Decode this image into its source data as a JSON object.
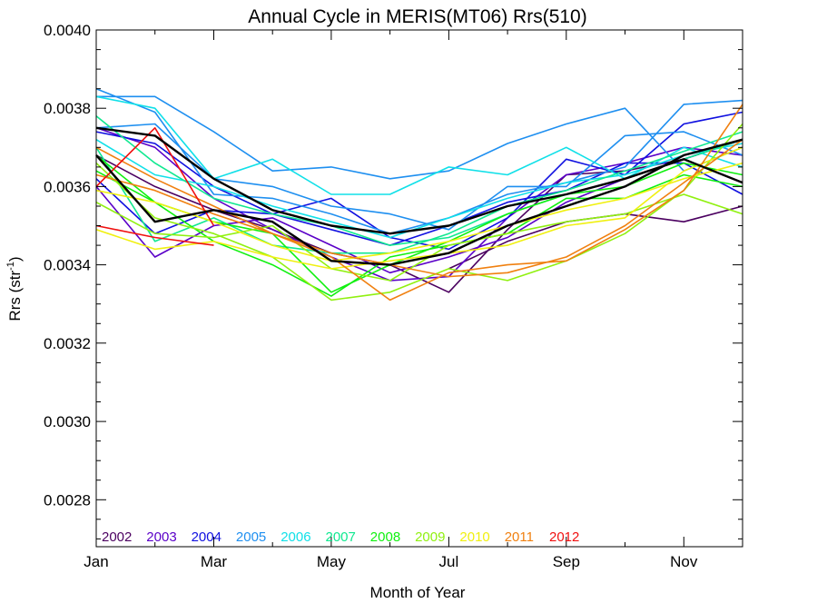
{
  "chart_data": {
    "type": "line",
    "title": "Annual Cycle in MERIS(MT06) Rrs(510)",
    "xlabel": "Month of Year",
    "ylabel": "Rrs (str",
    "ylabel_sup": "-1",
    "ylabel_suffix": ")",
    "xlim": [
      1,
      12
    ],
    "ylim": [
      0.00268,
      0.004
    ],
    "x_ticks": [
      {
        "value": 1,
        "label": "Jan"
      },
      {
        "value": 3,
        "label": "Mar"
      },
      {
        "value": 5,
        "label": "May"
      },
      {
        "value": 7,
        "label": "Jul"
      },
      {
        "value": 9,
        "label": "Sep"
      },
      {
        "value": 11,
        "label": "Nov"
      }
    ],
    "y_ticks": [
      {
        "value": 0.0028,
        "label": "0.0028"
      },
      {
        "value": 0.003,
        "label": "0.0030"
      },
      {
        "value": 0.0032,
        "label": "0.0032"
      },
      {
        "value": 0.0034,
        "label": "0.0034"
      },
      {
        "value": 0.0036,
        "label": "0.0036"
      },
      {
        "value": 0.0038,
        "label": "0.0038"
      },
      {
        "value": 0.004,
        "label": "0.0040"
      }
    ],
    "legend_placement": "bottom-left",
    "legend": [
      {
        "label": "2002",
        "color": "#4b0060"
      },
      {
        "label": "2003",
        "color": "#5a00c8"
      },
      {
        "label": "2004",
        "color": "#1010e0"
      },
      {
        "label": "2005",
        "color": "#1e8ff0"
      },
      {
        "label": "2006",
        "color": "#10e0e8"
      },
      {
        "label": "2007",
        "color": "#10e890"
      },
      {
        "label": "2008",
        "color": "#10f010"
      },
      {
        "label": "2009",
        "color": "#90f010"
      },
      {
        "label": "2010",
        "color": "#f0f010"
      },
      {
        "label": "2011",
        "color": "#f08010"
      },
      {
        "label": "2012",
        "color": "#f01010"
      }
    ],
    "series": [
      {
        "year": "2002",
        "color": "#4b0060",
        "x": [
          7,
          8,
          9,
          10,
          11,
          12
        ],
        "values": [
          0.00339,
          0.00346,
          0.00351,
          0.00353,
          0.00351,
          0.00355
        ]
      },
      {
        "year": "2002",
        "color": "#4b0060",
        "x": [
          1,
          2,
          3,
          4,
          5,
          6,
          7,
          8,
          9,
          10,
          11,
          12
        ],
        "values": [
          0.00368,
          0.0036,
          0.00354,
          0.00349,
          0.00343,
          0.0034,
          0.00333,
          0.00349,
          0.00363,
          0.00364,
          0.00367,
          0.00372
        ]
      },
      {
        "year": "2003",
        "color": "#5a00c8",
        "x": [
          1,
          2,
          3,
          4,
          5,
          6,
          7,
          8,
          9,
          10,
          11,
          12
        ],
        "values": [
          0.0036,
          0.00342,
          0.0035,
          0.00352,
          0.00345,
          0.00338,
          0.00342,
          0.00347,
          0.00356,
          0.00362,
          0.00367,
          0.00372
        ]
      },
      {
        "year": "2003",
        "color": "#5a00c8",
        "x": [
          1,
          2,
          3,
          4,
          5,
          6,
          7,
          8,
          9,
          10,
          11,
          12
        ],
        "values": [
          0.00375,
          0.0037,
          0.00357,
          0.00349,
          0.00342,
          0.00336,
          0.00337,
          0.00352,
          0.00363,
          0.00366,
          0.0037,
          0.00368
        ]
      },
      {
        "year": "2004",
        "color": "#1010e0",
        "x": [
          1,
          2,
          3,
          4,
          5,
          6,
          7,
          8,
          9,
          10,
          11,
          12
        ],
        "values": [
          0.00362,
          0.00348,
          0.00354,
          0.00353,
          0.00357,
          0.00347,
          0.00344,
          0.00352,
          0.00367,
          0.00363,
          0.00376,
          0.00379
        ]
      },
      {
        "year": "2004",
        "color": "#1010e0",
        "x": [
          1,
          2,
          3,
          4,
          5,
          6,
          7,
          8,
          9,
          10,
          11,
          12
        ],
        "values": [
          0.00374,
          0.00371,
          0.0036,
          0.00353,
          0.00349,
          0.00345,
          0.0035,
          0.00356,
          0.00359,
          0.00366,
          0.00366,
          0.00358
        ]
      },
      {
        "year": "2005",
        "color": "#1e8ff0",
        "x": [
          1,
          2,
          3,
          4,
          5,
          6,
          7,
          8,
          9,
          10,
          11,
          12
        ],
        "values": [
          0.00383,
          0.00383,
          0.00374,
          0.00364,
          0.00365,
          0.00362,
          0.00364,
          0.00371,
          0.00376,
          0.0038,
          0.00364,
          0.0037
        ]
      },
      {
        "year": "2005",
        "color": "#1e8ff0",
        "x": [
          1,
          2,
          3,
          4,
          5,
          6,
          7,
          8,
          9,
          10,
          11,
          12
        ],
        "values": [
          0.00375,
          0.00376,
          0.00362,
          0.0036,
          0.00355,
          0.00353,
          0.00349,
          0.0036,
          0.0036,
          0.00373,
          0.00374,
          0.00368
        ]
      },
      {
        "year": "2005",
        "color": "#1e8ff0",
        "x": [
          1,
          2,
          3,
          4,
          5,
          6,
          7,
          8,
          9,
          10,
          11,
          12
        ],
        "values": [
          0.00385,
          0.00379,
          0.00358,
          0.00357,
          0.00353,
          0.00348,
          0.00352,
          0.00358,
          0.00361,
          0.00365,
          0.00381,
          0.00382
        ]
      },
      {
        "year": "2006",
        "color": "#10e0e8",
        "x": [
          1,
          2,
          3,
          4,
          5,
          6,
          7,
          8,
          9,
          10,
          11,
          12
        ],
        "values": [
          0.00383,
          0.0038,
          0.00362,
          0.00367,
          0.00358,
          0.00358,
          0.00365,
          0.00363,
          0.0037,
          0.00362,
          0.0037,
          0.00365
        ]
      },
      {
        "year": "2006",
        "color": "#10e0e8",
        "x": [
          1,
          2,
          3,
          4,
          5,
          6,
          7,
          8,
          9,
          10,
          11,
          12
        ],
        "values": [
          0.00372,
          0.00363,
          0.0036,
          0.00355,
          0.00351,
          0.00347,
          0.00352,
          0.00357,
          0.00361,
          0.00363,
          0.00368,
          0.00371
        ]
      },
      {
        "year": "2007",
        "color": "#10e890",
        "x": [
          1,
          2,
          3,
          4,
          5,
          6,
          7,
          8,
          9,
          10,
          11,
          12
        ],
        "values": [
          0.00378,
          0.00366,
          0.00357,
          0.00353,
          0.0035,
          0.00345,
          0.00347,
          0.00353,
          0.00358,
          0.00362,
          0.00367,
          0.00372
        ]
      },
      {
        "year": "2007",
        "color": "#10e890",
        "x": [
          1,
          2,
          3,
          4,
          5,
          6,
          7,
          8,
          9,
          10,
          11,
          12
        ],
        "values": [
          0.0037,
          0.00346,
          0.00352,
          0.00345,
          0.00343,
          0.00343,
          0.00348,
          0.00355,
          0.00359,
          0.00364,
          0.00369,
          0.00374
        ]
      },
      {
        "year": "2008",
        "color": "#10f010",
        "x": [
          1,
          2,
          3,
          4,
          5,
          6,
          7,
          8,
          9,
          10,
          11,
          12
        ],
        "values": [
          0.00368,
          0.00356,
          0.00351,
          0.00348,
          0.00333,
          0.0034,
          0.00346,
          0.00353,
          0.00358,
          0.0036,
          0.00366,
          0.00363
        ]
      },
      {
        "year": "2008",
        "color": "#10f010",
        "x": [
          1,
          2,
          3,
          4,
          5,
          6,
          7,
          8,
          9,
          10,
          11,
          12
        ],
        "values": [
          0.00364,
          0.00356,
          0.00346,
          0.0034,
          0.00332,
          0.00342,
          0.00345,
          0.00348,
          0.00357,
          0.00357,
          0.00363,
          0.0036
        ]
      },
      {
        "year": "2009",
        "color": "#90f010",
        "x": [
          1,
          2,
          3,
          4,
          5,
          6,
          7,
          8,
          9,
          10,
          11,
          12
        ],
        "values": [
          0.00366,
          0.00352,
          0.00348,
          0.00342,
          0.00331,
          0.00333,
          0.00339,
          0.00336,
          0.00341,
          0.00348,
          0.00359,
          0.00376
        ]
      },
      {
        "year": "2009",
        "color": "#90f010",
        "x": [
          1,
          2,
          3,
          4,
          5,
          6,
          7,
          8,
          9,
          10,
          11,
          12
        ],
        "values": [
          0.00356,
          0.00348,
          0.00347,
          0.0035,
          0.00339,
          0.00336,
          0.00345,
          0.00348,
          0.00351,
          0.00353,
          0.00358,
          0.00353
        ]
      },
      {
        "year": "2010",
        "color": "#f0f010",
        "x": [
          1,
          2,
          3,
          4,
          5,
          6,
          7,
          8,
          9,
          10,
          11,
          12
        ],
        "values": [
          0.00349,
          0.00344,
          0.00346,
          0.00342,
          0.00339,
          0.00341,
          0.00343,
          0.00345,
          0.0035,
          0.00352,
          0.00364,
          0.0037
        ]
      },
      {
        "year": "2010",
        "color": "#f0f010",
        "x": [
          1,
          2,
          3,
          4,
          5,
          6,
          7,
          8,
          9,
          10,
          11,
          12
        ],
        "values": [
          0.00359,
          0.00356,
          0.00351,
          0.00345,
          0.00341,
          0.00343,
          0.00346,
          0.0035,
          0.00354,
          0.00357,
          0.00362,
          0.00366
        ]
      },
      {
        "year": "2011",
        "color": "#f08010",
        "x": [
          1,
          2,
          3,
          4,
          5,
          6,
          7,
          8,
          9,
          10,
          11,
          12
        ],
        "values": [
          0.00363,
          0.00359,
          0.00353,
          0.00348,
          0.00342,
          0.00331,
          0.00338,
          0.0034,
          0.00341,
          0.00349,
          0.00359,
          0.00381
        ]
      },
      {
        "year": "2011",
        "color": "#f08010",
        "x": [
          1,
          2,
          3,
          4,
          5,
          6,
          7,
          8,
          9,
          10,
          11,
          12
        ],
        "values": [
          0.0037,
          0.00362,
          0.00355,
          0.00348,
          0.00343,
          0.0034,
          0.00337,
          0.00338,
          0.00342,
          0.0035,
          0.00361,
          0.00372
        ]
      },
      {
        "year": "2012",
        "color": "#f01010",
        "x": [
          1,
          2,
          3
        ],
        "values": [
          0.0035,
          0.00347,
          0.00345
        ]
      },
      {
        "year": "2012",
        "color": "#f01010",
        "x": [
          1,
          2,
          3
        ],
        "values": [
          0.0036,
          0.00375,
          0.0035
        ]
      },
      {
        "year": "mean",
        "color": "#000000",
        "width": 2.4,
        "x": [
          1,
          2,
          3,
          4,
          5,
          6,
          7,
          8,
          9,
          10,
          11,
          12
        ],
        "values": [
          0.00368,
          0.00351,
          0.00354,
          0.00351,
          0.00341,
          0.0034,
          0.00343,
          0.0035,
          0.00355,
          0.0036,
          0.00368,
          0.00372
        ]
      },
      {
        "year": "mean",
        "color": "#000000",
        "width": 2.4,
        "x": [
          1,
          2,
          3,
          4,
          5,
          6,
          7,
          8,
          9,
          10,
          11,
          12
        ],
        "values": [
          0.00375,
          0.00373,
          0.00362,
          0.00354,
          0.0035,
          0.00348,
          0.0035,
          0.00355,
          0.00358,
          0.00362,
          0.00367,
          0.00361
        ]
      }
    ]
  }
}
